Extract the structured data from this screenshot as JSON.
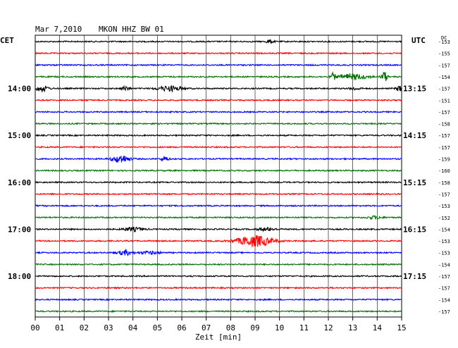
{
  "header": {
    "date": "Mar 7,2010",
    "station": "MKON HHZ BW 01",
    "left_zone": "CET",
    "right_zone": "UTC",
    "dc_label": "DC"
  },
  "chart_data": {
    "type": "line",
    "title": "Mar 7,2010   MKON HHZ BW 01",
    "xlabel": "Zeit [min]",
    "xlim": [
      0,
      15
    ],
    "x_ticks": [
      "00",
      "01",
      "02",
      "03",
      "04",
      "05",
      "06",
      "07",
      "08",
      "09",
      "10",
      "11",
      "12",
      "13",
      "14",
      "15"
    ],
    "trace_colors": [
      "#000000",
      "#ff0000",
      "#0000ff",
      "#007000"
    ],
    "left_hour_labels": [
      {
        "trace": 4,
        "label": "14:00"
      },
      {
        "trace": 8,
        "label": "15:00"
      },
      {
        "trace": 12,
        "label": "16:00"
      },
      {
        "trace": 16,
        "label": "17:00"
      },
      {
        "trace": 20,
        "label": "18:00"
      }
    ],
    "right_hour_labels": [
      {
        "trace": 4,
        "label": "13:15"
      },
      {
        "trace": 8,
        "label": "14:15"
      },
      {
        "trace": 12,
        "label": "15:15"
      },
      {
        "trace": 16,
        "label": "16:15"
      },
      {
        "trace": 20,
        "label": "17:15"
      }
    ],
    "dc_values": [
      -153,
      -155,
      -157,
      -154,
      -157,
      -151,
      -157,
      -158,
      -157,
      -157,
      -159,
      -160,
      -158,
      -157,
      -153,
      -152,
      -154,
      -153,
      -153,
      -154,
      -157,
      -157,
      -154,
      -157
    ],
    "events": [
      {
        "trace": 0,
        "minute": 9.6,
        "amp": 2.5,
        "width": 0.15
      },
      {
        "trace": 3,
        "minute": 12.2,
        "amp": 5.0,
        "width": 0.08
      },
      {
        "trace": 3,
        "minute": 13.0,
        "amp": 4.0,
        "width": 0.6
      },
      {
        "trace": 3,
        "minute": 14.3,
        "amp": 7.0,
        "width": 0.12
      },
      {
        "trace": 4,
        "minute": 0.3,
        "amp": 4.0,
        "width": 0.25
      },
      {
        "trace": 4,
        "minute": 3.7,
        "amp": 3.0,
        "width": 0.15
      },
      {
        "trace": 4,
        "minute": 5.5,
        "amp": 3.5,
        "width": 0.5
      },
      {
        "trace": 4,
        "minute": 13.1,
        "amp": 2.0,
        "width": 0.2
      },
      {
        "trace": 4,
        "minute": 14.9,
        "amp": 4.0,
        "width": 0.12
      },
      {
        "trace": 10,
        "minute": 3.5,
        "amp": 5.5,
        "width": 0.35
      },
      {
        "trace": 10,
        "minute": 5.3,
        "amp": 3.5,
        "width": 0.15
      },
      {
        "trace": 15,
        "minute": 13.9,
        "amp": 2.0,
        "width": 0.3
      },
      {
        "trace": 16,
        "minute": 4.0,
        "amp": 2.5,
        "width": 0.4
      },
      {
        "trace": 16,
        "minute": 9.5,
        "amp": 2.0,
        "width": 0.4
      },
      {
        "trace": 17,
        "minute": 9.0,
        "amp": 8.0,
        "width": 0.7
      },
      {
        "trace": 18,
        "minute": 3.7,
        "amp": 3.5,
        "width": 0.3
      },
      {
        "trace": 18,
        "minute": 4.7,
        "amp": 2.0,
        "width": 0.4
      }
    ]
  }
}
